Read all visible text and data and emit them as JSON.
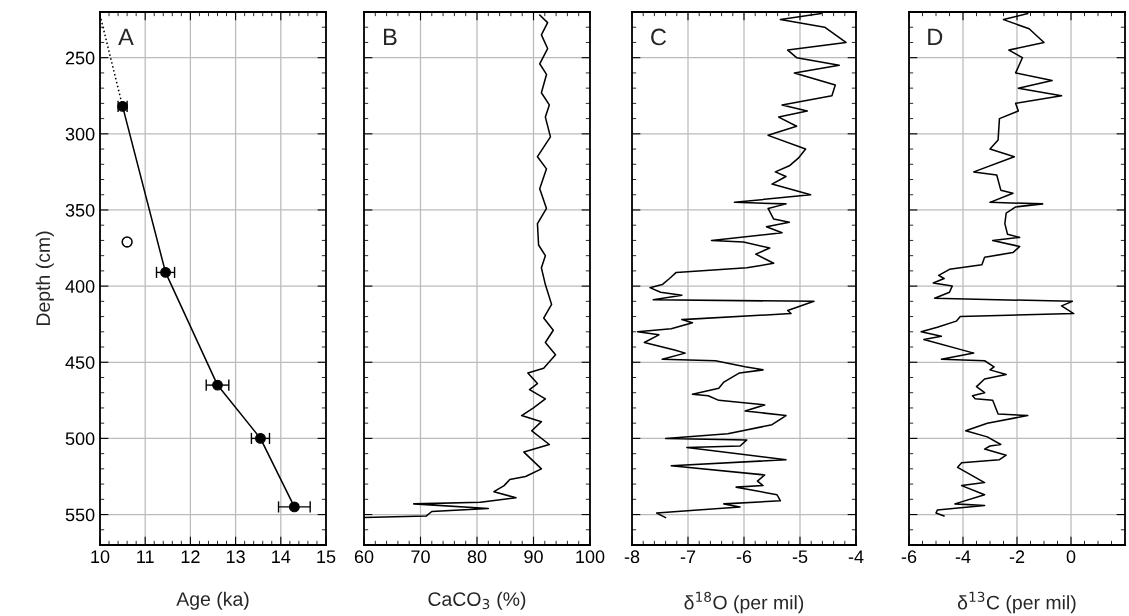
{
  "chart_data": [
    {
      "type": "line",
      "title": "A",
      "xlabel": "Age (ka)",
      "ylabel": "Depth (cm)",
      "xlim": [
        10,
        15
      ],
      "xticks": [
        10,
        11,
        12,
        13,
        14,
        15
      ],
      "ylim": [
        570,
        220
      ],
      "yticks": [
        250,
        300,
        350,
        400,
        450,
        500,
        550
      ],
      "grid": true,
      "series": [
        {
          "color": "#000000",
          "marker": "circle",
          "x": [
            10.5,
            11.45,
            12.6,
            13.55,
            14.3
          ],
          "values": [
            282,
            391,
            465,
            500,
            545
          ],
          "xerrors": [
            0.1,
            0.2,
            0.25,
            0.2,
            0.35
          ]
        },
        {
          "type": "scatter",
          "color": "#000000",
          "marker": "circle",
          "x": [
            10.6
          ],
          "values": [
            371
          ]
        },
        {
          "color": "#000000",
          "line_style": "dotted",
          "x": [
            10.0,
            10.5
          ],
          "values": [
            222,
            282
          ]
        }
      ]
    },
    {
      "type": "line",
      "title": "B",
      "xlabel": "CaCO$_{3}$ (%)",
      "xlim": [
        60,
        100
      ],
      "xticks": [
        60,
        70,
        80,
        90,
        100
      ],
      "ylim": [
        570,
        220
      ],
      "yticks": [
        250,
        300,
        350,
        400,
        450,
        500,
        550
      ],
      "grid": true,
      "tick_labels": "x",
      "series": [
        {
          "color": "#000000",
          "x": [
            91.1,
            92.5,
            91.4,
            92.5,
            91.1,
            92.3,
            91.4,
            92.8,
            92.1,
            93.0,
            90.7,
            92.3,
            91.1,
            92.3,
            90.7,
            90.9,
            92.1,
            91.4,
            92.1,
            93.2,
            91.8,
            93.5,
            92.1,
            93.9,
            91.8,
            89.0,
            90.7,
            89.3,
            92.1,
            90.0,
            87.9,
            91.4,
            89.7,
            92.8,
            88.3,
            91.4,
            88.6,
            85.8,
            84.8,
            83.0,
            86.9,
            80.6,
            68.8,
            82.0,
            72.0,
            71.0,
            60.0
          ],
          "values": [
            222,
            227,
            235,
            244,
            254,
            261,
            273,
            281,
            289,
            302,
            315,
            323,
            336,
            349,
            359,
            373,
            380,
            388,
            399,
            412,
            421,
            429,
            437,
            445,
            454,
            457,
            464,
            468,
            474,
            480,
            485,
            489,
            495,
            504,
            509,
            520,
            525,
            527,
            531,
            535,
            539,
            542,
            543,
            546,
            548,
            551,
            552
          ]
        }
      ]
    },
    {
      "type": "line",
      "title": "C",
      "xlabel": "δ$^{18}$O (per mil)",
      "xlim": [
        -8,
        -4
      ],
      "xticks": [
        -8,
        -7,
        -6,
        -5,
        -4
      ],
      "ylim": [
        570,
        220
      ],
      "yticks": [
        250,
        300,
        350,
        400,
        450,
        500,
        550
      ],
      "grid": true,
      "tick_labels": "x",
      "series": [
        {
          "color": "#000000",
          "x": [
            -4.62,
            -5.35,
            -4.56,
            -4.18,
            -5.22,
            -5.06,
            -4.3,
            -5.1,
            -4.37,
            -4.43,
            -5.32,
            -4.87,
            -5.38,
            -5.06,
            -5.57,
            -4.9,
            -5.03,
            -5.19,
            -5.44,
            -5.25,
            -5.5,
            -4.81,
            -6.17,
            -5.25,
            -5.57,
            -5.47,
            -5.19,
            -5.6,
            -5.32,
            -6.58,
            -6.01,
            -5.54,
            -5.79,
            -5.47,
            -5.95,
            -7.21,
            -7.33,
            -7.46,
            -7.68,
            -7.49,
            -7.11,
            -7.62,
            -4.75,
            -5.22,
            -5.16,
            -7.11,
            -6.92,
            -7.3,
            -7.9,
            -7.52,
            -7.78,
            -7.24,
            -7.05,
            -7.46,
            -6.51,
            -5.98,
            -5.66,
            -6.08,
            -6.36,
            -6.45,
            -6.92,
            -6.64,
            -6.45,
            -5.63,
            -5.98,
            -5.25,
            -5.5,
            -6.29,
            -7.4,
            -5.95,
            -6.07,
            -7.02,
            -5.25,
            -7.3,
            -5.63,
            -5.76,
            -5.66,
            -6.14,
            -5.41,
            -5.35,
            -6.36,
            -6.07,
            -7.56,
            -7.4
          ],
          "values": [
            221,
            225,
            230,
            240,
            245,
            250,
            255,
            260,
            268,
            275,
            281,
            285,
            289,
            295,
            301,
            310,
            316,
            321,
            325,
            328,
            333,
            340,
            345,
            346,
            349,
            356,
            358,
            361,
            365,
            370,
            371,
            375,
            379,
            385,
            388,
            391,
            395,
            399,
            401,
            404,
            406,
            409,
            410,
            416,
            418,
            422,
            424,
            428,
            430,
            432,
            437,
            442,
            444,
            448,
            449,
            453,
            455,
            457,
            463,
            467,
            471,
            472,
            475,
            478,
            482,
            485,
            491,
            497,
            500,
            501,
            505,
            506,
            514,
            518,
            524,
            528,
            531,
            532,
            537,
            541,
            543,
            545,
            549,
            552
          ]
        }
      ]
    },
    {
      "type": "line",
      "title": "D",
      "xlabel": "δ$^{13}$C (per mil)",
      "xlim": [
        -6,
        2
      ],
      "xticks": [
        -6,
        -4,
        -2,
        0
      ],
      "ylim": [
        570,
        220
      ],
      "yticks": [
        250,
        300,
        350,
        400,
        450,
        500,
        550
      ],
      "grid": true,
      "tick_labels": "x",
      "series": [
        {
          "color": "#000000",
          "x": [
            -1.6,
            -2.5,
            -1.55,
            -1.0,
            -2.3,
            -1.8,
            -2.05,
            -0.7,
            -1.95,
            -0.35,
            -2.05,
            -1.95,
            -2.65,
            -2.7,
            -3.0,
            -2.1,
            -3.6,
            -2.75,
            -2.6,
            -2.15,
            -3.0,
            -1.05,
            -2.05,
            -2.4,
            -2.45,
            -2.35,
            -1.9,
            -2.9,
            -1.9,
            -2.15,
            -3.2,
            -3.3,
            -4.5,
            -4.9,
            -4.7,
            -5.1,
            -4.4,
            -4.5,
            -5.05,
            0.05,
            -0.35,
            0.1,
            -4.1,
            -4.25,
            -4.95,
            -5.55,
            -4.8,
            -5.45,
            -3.6,
            -4.8,
            -3.2,
            -2.85,
            -3.0,
            -2.4,
            -3.2,
            -3.5,
            -3.2,
            -3.65,
            -3.55,
            -2.9,
            -2.7,
            -1.6,
            -3.1,
            -3.9,
            -3.1,
            -2.6,
            -3.0,
            -3.2,
            -2.4,
            -2.65,
            -4.05,
            -4.2,
            -3.2,
            -4.05,
            -3.2,
            -4.3,
            -3.2,
            -4.95,
            -5.0,
            -4.7
          ],
          "values": [
            221,
            225,
            231,
            240,
            245,
            250,
            260,
            265,
            270,
            275,
            280,
            285,
            290,
            304,
            310,
            315,
            325,
            327,
            337,
            339,
            345,
            346,
            348,
            352,
            359,
            366,
            368,
            370,
            374,
            378,
            381,
            386,
            389,
            393,
            395,
            398,
            400,
            404,
            408,
            410,
            413,
            418,
            420,
            423,
            427,
            430,
            433,
            435,
            444,
            448,
            449,
            453,
            455,
            458,
            461,
            466,
            470,
            472,
            474,
            475,
            484,
            485,
            490,
            495,
            499,
            504,
            505,
            507,
            511,
            514,
            516,
            519,
            529,
            531,
            537,
            543,
            544,
            547,
            549,
            551
          ]
        }
      ]
    }
  ]
}
